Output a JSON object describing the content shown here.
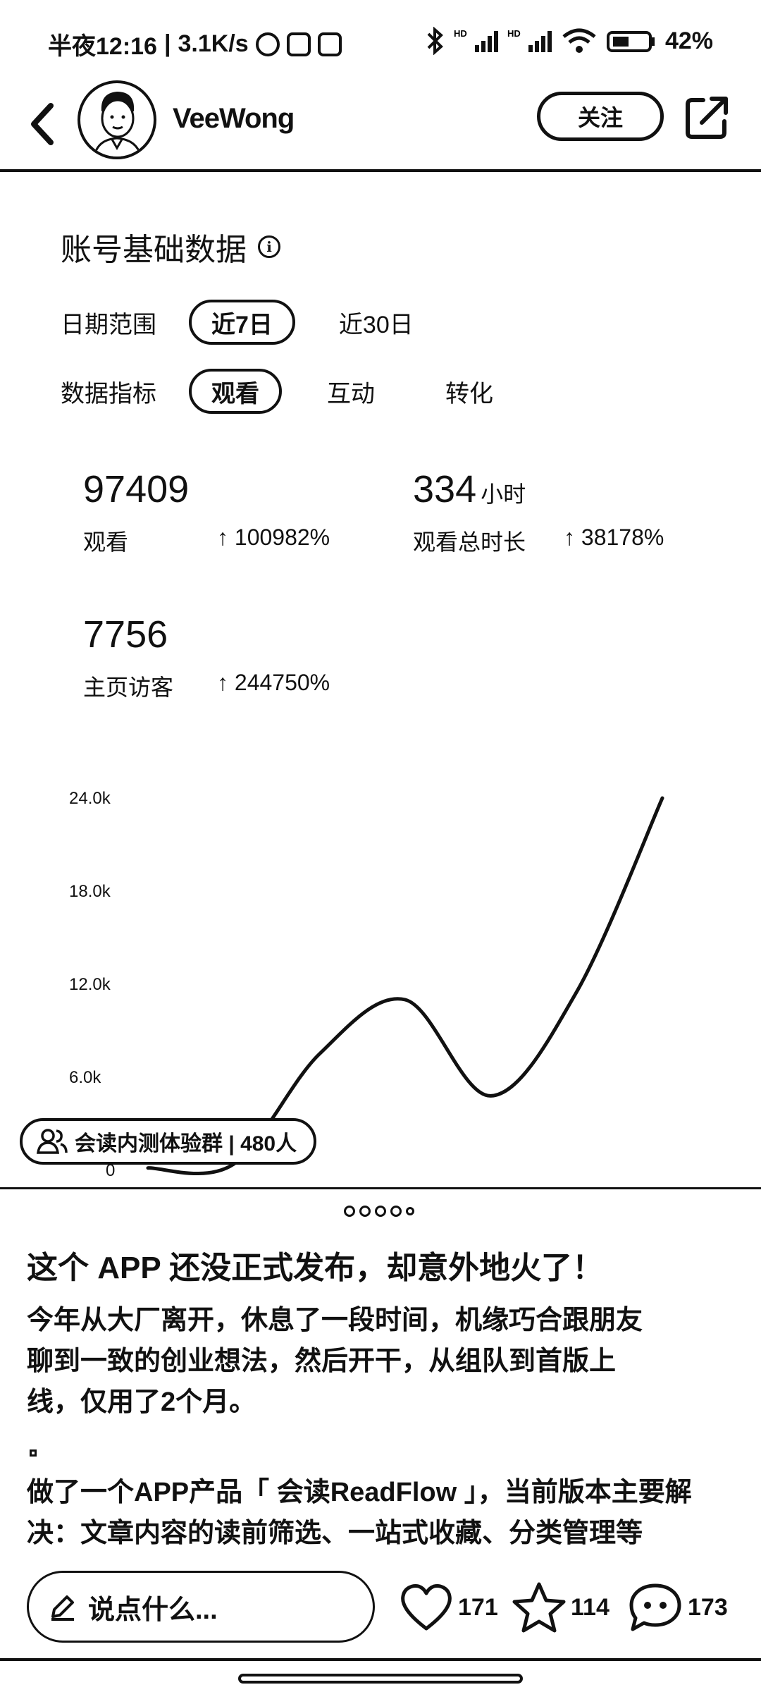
{
  "status_bar": {
    "time": "半夜12:16",
    "net_speed": "3.1K/s",
    "battery": "42%",
    "signal_label": "HD"
  },
  "header": {
    "username": "VeeWong",
    "follow_label": "关注"
  },
  "data_section": {
    "title": "账号基础数据",
    "date_range": {
      "label": "日期范围",
      "selected": "近7日",
      "other": "近30日"
    },
    "metric_type": {
      "label": "数据指标",
      "selected": "观看",
      "options": [
        "互动",
        "转化"
      ]
    },
    "metrics": [
      {
        "value": "97409",
        "unit": "",
        "label": "观看",
        "change": "↑ 100982%"
      },
      {
        "value": "334",
        "unit": "小时",
        "label": "观看总时长",
        "change": "↑ 38178%"
      },
      {
        "value": "7756",
        "unit": "",
        "label": "主页访客",
        "change": "↑ 244750%"
      }
    ]
  },
  "chart_data": {
    "type": "line",
    "yticks": [
      "0",
      "6.0k",
      "12.0k",
      "18.0k",
      "24.0k"
    ],
    "ylim": [
      0,
      24000
    ],
    "x": [
      0,
      1,
      2,
      3,
      4,
      5,
      6
    ],
    "values": [
      150,
      400,
      7500,
      11000,
      4800,
      11500,
      24000
    ]
  },
  "group_badge": {
    "text": "会读内测体验群 | 480人"
  },
  "post": {
    "title": "这个 APP 还没正式发布，却意外地火了！",
    "paragraph1_lines": [
      "今年从大厂离开，休息了一段时间，机缘巧合跟朋友",
      "聊到一致的创业想法，然后开干，从组队到首版上",
      "线，仅用了2个月。"
    ],
    "paragraph2_lines": [
      "做了一个APP产品「 会读ReadFlow 」，当前版本主要解",
      "决：文章内容的读前筛选、一站式收藏、分类管理等"
    ]
  },
  "bottom_bar": {
    "comment_placeholder": "说点什么...",
    "likes": "171",
    "favorites": "114",
    "comments": "173"
  }
}
